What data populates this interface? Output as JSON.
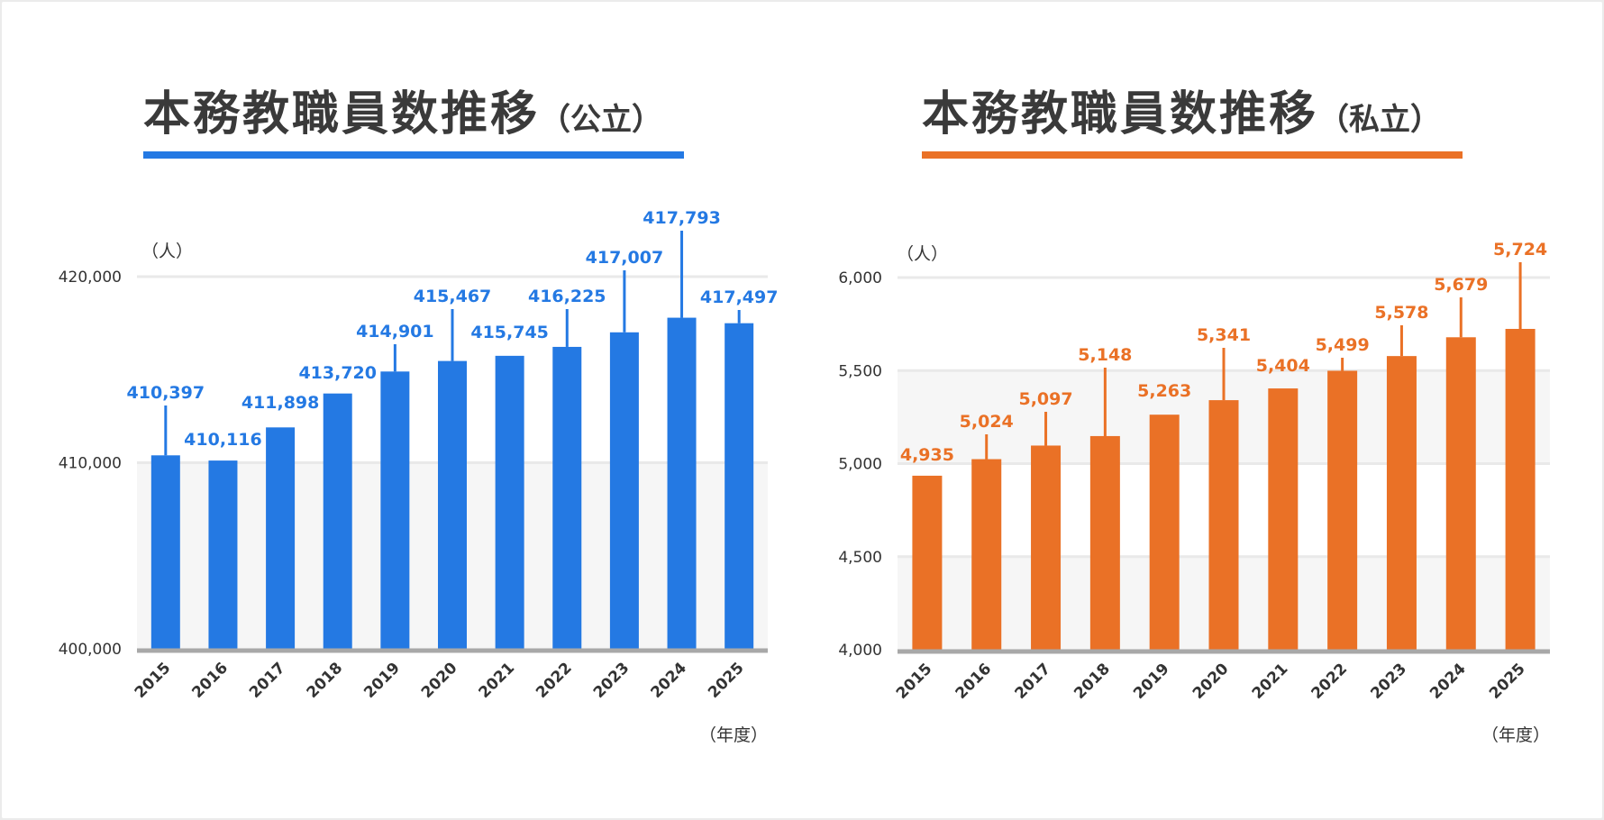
{
  "colors": {
    "public_bar": "#2479e3",
    "private_bar": "#ea7126",
    "title_text": "#3a3a3a",
    "gridline": "#e9e9e9",
    "baseline": "#a8a8a8",
    "band": "#f6f6f6"
  },
  "panels": [
    {
      "title": "本務教職員数推移",
      "subtitle": "（公立）",
      "y_unit": "（人）",
      "x_unit": "（年度）"
    },
    {
      "title": "本務教職員数推移",
      "subtitle": "（私立）",
      "y_unit": "（人）",
      "x_unit": "（年度）"
    }
  ],
  "chart_data": [
    {
      "type": "bar",
      "title": "本務教職員数推移（公立）",
      "categories": [
        "2015",
        "2016",
        "2017",
        "2018",
        "2019",
        "2020",
        "2021",
        "2022",
        "2023",
        "2024",
        "2025"
      ],
      "values": [
        410397,
        410116,
        411898,
        413720,
        414901,
        415467,
        415745,
        416225,
        417007,
        417793,
        417497
      ],
      "value_labels": [
        "410,397",
        "410,116",
        "411,898",
        "413,720",
        "414,901",
        "415,467",
        "415,745",
        "416,225",
        "417,007",
        "417,793",
        "417,497"
      ],
      "ylim": [
        400000,
        420000
      ],
      "yticks": [
        400000,
        410000,
        420000
      ],
      "ytick_labels": [
        "400,000",
        "410,000",
        "420,000"
      ],
      "ylabel": "（人）",
      "xlabel": "（年度）",
      "grid": true,
      "color": "#2479e3"
    },
    {
      "type": "bar",
      "title": "本務教職員数推移（私立）",
      "categories": [
        "2015",
        "2016",
        "2017",
        "2018",
        "2019",
        "2020",
        "2021",
        "2022",
        "2023",
        "2024",
        "2025"
      ],
      "values": [
        4935,
        5024,
        5097,
        5148,
        5263,
        5341,
        5404,
        5499,
        5578,
        5679,
        5724
      ],
      "value_labels": [
        "4,935",
        "5,024",
        "5,097",
        "5,148",
        "5,263",
        "5,341",
        "5,404",
        "5,499",
        "5,578",
        "5,679",
        "5,724"
      ],
      "ylim": [
        4000,
        6000
      ],
      "yticks": [
        4000,
        4500,
        5000,
        5500,
        6000
      ],
      "ytick_labels": [
        "4,000",
        "4,500",
        "5,000",
        "5,500",
        "6,000"
      ],
      "ylabel": "（人）",
      "xlabel": "（年度）",
      "grid": true,
      "color": "#ea7126"
    }
  ]
}
